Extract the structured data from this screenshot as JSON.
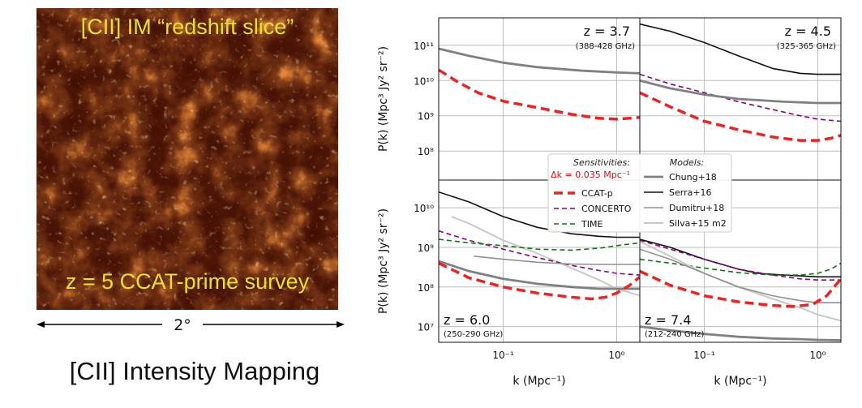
{
  "map": {
    "title": "[CII] IM “redshift slice”",
    "survey_label": "z = 5 CCAT-prime survey",
    "scale_label": "2°",
    "caption": "[CII] Intensity Mapping",
    "colors": {
      "background": "#1a0602",
      "hot": "#ffe0a0",
      "mid": "#d8501a",
      "warm": "#7a1a06"
    }
  },
  "chart_data": {
    "type": "line",
    "x_axis": {
      "label": "k (Mpc⁻¹)",
      "scale": "log",
      "range": [
        0.027,
        1.6
      ],
      "ticks": [
        0.1,
        1
      ],
      "tick_labels": [
        "10⁻¹",
        "10⁰"
      ]
    },
    "y_label": "P(k) (Mpc³ Jy² sr⁻²)",
    "legend": {
      "sensitivities_title": "Sensitivities:",
      "delta_k_label": "Δk = 0.035 Mpc⁻¹",
      "models_title": "Models:",
      "sensitivities": [
        {
          "key": "ccatp",
          "label": "CCAT-p",
          "color": "#ee2222",
          "dash": "long",
          "width": 3.5
        },
        {
          "key": "concerto",
          "label": "CONCERTO",
          "color": "#880088",
          "dash": "short",
          "width": 1.6
        },
        {
          "key": "time",
          "label": "TIME",
          "color": "#117711",
          "dash": "short",
          "width": 1.6
        }
      ],
      "models": [
        {
          "key": "chung",
          "label": "Chung+18",
          "color": "#808080",
          "width": 2.8
        },
        {
          "key": "serra",
          "label": "Serra+16",
          "color": "#111111",
          "width": 1.6
        },
        {
          "key": "dumitru",
          "label": "Dumitru+18",
          "color": "#909090",
          "width": 1.6
        },
        {
          "key": "silva",
          "label": "Silva+15 m2",
          "color": "#c8c8c8",
          "width": 2.0
        }
      ]
    },
    "panels": [
      {
        "z_label": "z = 3.7",
        "freq_label": "(388-428 GHz)",
        "label_pos": "top-right",
        "ylim": [
          15000000.0,
          600000000000.0
        ],
        "y_ticks": [
          100000000.0,
          1000000000.0,
          10000000000.0,
          100000000000.0
        ],
        "y_tick_labels": [
          "10⁸",
          "10⁹",
          "10¹⁰",
          "10¹¹"
        ],
        "show_y_ticks": true,
        "series": [
          {
            "key": "chung",
            "x": [
              0.027,
              0.05,
              0.1,
              0.2,
              0.5,
              1.0,
              1.6
            ],
            "y": [
              80000000000.0,
              50000000000.0,
              32000000000.0,
              24000000000.0,
              19000000000.0,
              17000000000.0,
              16000000000.0
            ]
          },
          {
            "key": "ccatp",
            "x": [
              0.027,
              0.04,
              0.06,
              0.1,
              0.2,
              0.4,
              0.7,
              1.0,
              1.3,
              1.6
            ],
            "y": [
              20000000000.0,
              9000000000.0,
              4500000000.0,
              2600000000.0,
              1700000000.0,
              1100000000.0,
              850000000.0,
              800000000.0,
              850000000.0,
              900000000.0
            ]
          }
        ]
      },
      {
        "z_label": "z = 4.5",
        "freq_label": "(325-365 GHz)",
        "label_pos": "top-right",
        "ylim": [
          15000000.0,
          600000000000.0
        ],
        "y_ticks": [
          100000000.0,
          1000000000.0,
          10000000000.0,
          100000000000.0
        ],
        "y_tick_labels": [
          "10⁸",
          "10⁹",
          "10¹⁰",
          "10¹¹"
        ],
        "show_y_ticks": false,
        "series": [
          {
            "key": "serra",
            "x": [
              0.027,
              0.05,
              0.1,
              0.2,
              0.4,
              0.7,
              1.0,
              1.6
            ],
            "y": [
              400000000000.0,
              250000000000.0,
              120000000000.0,
              50000000000.0,
              22000000000.0,
              16000000000.0,
              15000000000.0,
              15000000000.0
            ]
          },
          {
            "key": "concerto",
            "x": [
              0.027,
              0.05,
              0.1,
              0.2,
              0.4,
              0.7,
              1.0,
              1.6
            ],
            "y": [
              15000000000.0,
              8000000000.0,
              4500000000.0,
              2500000000.0,
              1500000000.0,
              1000000000.0,
              800000000.0,
              700000000.0
            ]
          },
          {
            "key": "chung",
            "x": [
              0.027,
              0.05,
              0.1,
              0.2,
              0.5,
              1.0,
              1.6
            ],
            "y": [
              10000000000.0,
              6000000000.0,
              4000000000.0,
              3000000000.0,
              2500000000.0,
              2300000000.0,
              2300000000.0
            ]
          },
          {
            "key": "ccatp",
            "x": [
              0.027,
              0.05,
              0.1,
              0.2,
              0.4,
              0.7,
              1.0,
              1.3,
              1.6
            ],
            "y": [
              4500000000.0,
              1800000000.0,
              700000000.0,
              400000000.0,
              250000000.0,
              200000000.0,
              200000000.0,
              230000000.0,
              280000000.0
            ]
          }
        ]
      },
      {
        "z_label": "z = 6.0",
        "freq_label": "(250-290 GHz)",
        "label_pos": "bottom-left",
        "ylim": [
          4000000.0,
          50000000000.0
        ],
        "y_ticks": [
          10000000.0,
          100000000.0,
          1000000000.0,
          10000000000.0
        ],
        "y_tick_labels": [
          "10⁷",
          "10⁸",
          "10⁹",
          "10¹⁰"
        ],
        "show_y_ticks": true,
        "series": [
          {
            "key": "serra",
            "x": [
              0.027,
              0.05,
              0.1,
              0.2,
              0.4,
              0.7,
              1.0,
              1.6
            ],
            "y": [
              25000000000.0,
              14000000000.0,
              6000000000.0,
              3200000000.0,
              2200000000.0,
              1900000000.0,
              1800000000.0,
              1800000000.0
            ]
          },
          {
            "key": "silva",
            "x": [
              0.035,
              0.05,
              0.1,
              0.2,
              0.4,
              0.7,
              1.0,
              1.6
            ],
            "y": [
              6000000000.0,
              4000000000.0,
              1500000000.0,
              700000000.0,
              300000000.0,
              150000000.0,
              90000000.0,
              60000000.0
            ]
          },
          {
            "key": "concerto",
            "x": [
              0.027,
              0.05,
              0.1,
              0.2,
              0.4,
              0.7,
              1.0,
              1.6
            ],
            "y": [
              2600000000.0,
              1500000000.0,
              900000000.0,
              550000000.0,
              350000000.0,
              260000000.0,
              220000000.0,
              200000000.0
            ]
          },
          {
            "key": "time",
            "x": [
              0.027,
              0.05,
              0.1,
              0.2,
              0.4,
              0.7,
              1.0,
              1.6
            ],
            "y": [
              1600000000.0,
              1300000000.0,
              1100000000.0,
              900000000.0,
              850000000.0,
              950000000.0,
              1100000000.0,
              1300000000.0
            ]
          },
          {
            "key": "dumitru",
            "x": [
              0.055,
              0.1,
              0.2,
              0.4,
              0.7,
              1.0,
              1.6
            ],
            "y": [
              600000000.0,
              500000000.0,
              420000000.0,
              380000000.0,
              370000000.0,
              370000000.0,
              370000000.0
            ]
          },
          {
            "key": "chung",
            "x": [
              0.027,
              0.05,
              0.1,
              0.2,
              0.4,
              0.7,
              1.0,
              1.6
            ],
            "y": [
              450000000.0,
              250000000.0,
              160000000.0,
              120000000.0,
              100000000.0,
              90000000.0,
              90000000.0,
              90000000.0
            ]
          },
          {
            "key": "ccatp",
            "x": [
              0.027,
              0.05,
              0.1,
              0.2,
              0.4,
              0.6,
              0.8,
              1.0,
              1.3,
              1.6
            ],
            "y": [
              400000000.0,
              170000000.0,
              100000000.0,
              70000000.0,
              55000000.0,
              50000000.0,
              55000000.0,
              70000000.0,
              110000000.0,
              180000000.0
            ]
          }
        ]
      },
      {
        "z_label": "z = 7.4",
        "freq_label": "(212-240 GHz)",
        "label_pos": "bottom-left",
        "ylim": [
          4000000.0,
          50000000000.0
        ],
        "y_ticks": [
          10000000.0,
          100000000.0,
          1000000000.0,
          10000000000.0
        ],
        "y_tick_labels": [
          "10⁷",
          "10⁸",
          "10⁹",
          "10¹⁰"
        ],
        "show_y_ticks": false,
        "series": [
          {
            "key": "serra",
            "x": [
              0.027,
              0.05,
              0.1,
              0.2,
              0.3,
              0.5,
              1.0,
              1.6
            ],
            "y": [
              1600000000.0,
              1000000000.0,
              500000000.0,
              280000000.0,
              220000000.0,
              200000000.0,
              180000000.0,
              180000000.0
            ]
          },
          {
            "key": "concerto",
            "x": [
              0.027,
              0.05,
              0.1,
              0.2,
              0.4,
              0.7,
              1.0,
              1.6
            ],
            "y": [
              1500000000.0,
              900000000.0,
              500000000.0,
              280000000.0,
              200000000.0,
              160000000.0,
              150000000.0,
              150000000.0
            ]
          },
          {
            "key": "time",
            "x": [
              0.027,
              0.05,
              0.1,
              0.2,
              0.4,
              0.7,
              1.0,
              1.3,
              1.6
            ],
            "y": [
              500000000.0,
              400000000.0,
              300000000.0,
              230000000.0,
              200000000.0,
              200000000.0,
              220000000.0,
              280000000.0,
              400000000.0
            ]
          },
          {
            "key": "silva",
            "x": [
              0.027,
              0.05,
              0.1,
              0.2,
              0.4,
              0.7,
              1.0,
              1.6
            ],
            "y": [
              1400000000.0,
              600000000.0,
              220000000.0,
              100000000.0,
              50000000.0,
              30000000.0,
              20000000.0,
              14000000.0
            ]
          },
          {
            "key": "dumitru",
            "x": [
              0.027,
              0.05,
              0.1,
              0.2,
              0.4,
              0.7,
              1.0,
              1.6
            ],
            "y": [
              900000000.0,
              500000000.0,
              220000000.0,
              100000000.0,
              60000000.0,
              45000000.0,
              40000000.0,
              40000000.0
            ]
          },
          {
            "key": "ccatp",
            "x": [
              0.027,
              0.05,
              0.1,
              0.2,
              0.4,
              0.6,
              0.9,
              1.2,
              1.6
            ],
            "y": [
              250000000.0,
              110000000.0,
              60000000.0,
              42000000.0,
              34000000.0,
              32000000.0,
              36000000.0,
              60000000.0,
              160000000.0
            ]
          },
          {
            "key": "chung",
            "x": [
              0.027,
              0.05,
              0.1,
              0.2,
              0.4,
              0.7,
              1.0,
              1.6
            ],
            "y": [
              10000000.0,
              8000000.0,
              6500000.0,
              5500000.0,
              5000000.0,
              4800000.0,
              4600000.0,
              4500000.0
            ]
          }
        ]
      }
    ]
  }
}
